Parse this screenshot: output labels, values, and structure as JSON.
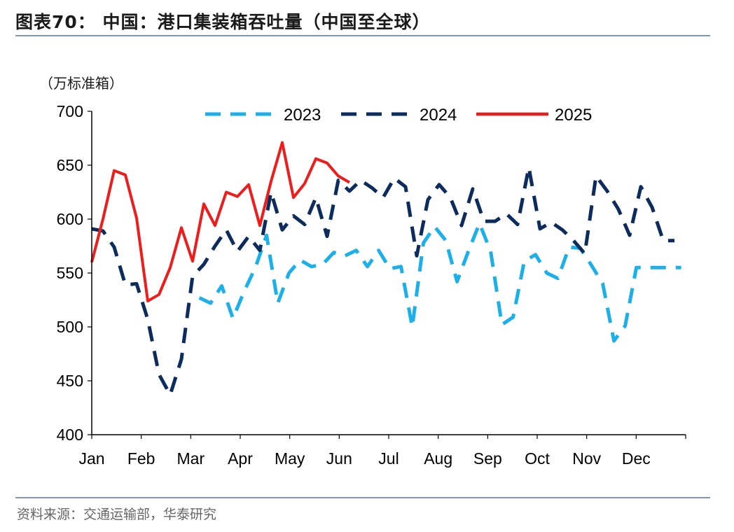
{
  "header": {
    "title": "图表70： 中国：港口集装箱吞吐量（中国至全球）"
  },
  "footer": {
    "source": "资料来源：交通运输部，华泰研究"
  },
  "chart_data": {
    "type": "line",
    "unit_label": "（万标准箱）",
    "ylim": [
      400,
      700
    ],
    "yticks": [
      400,
      450,
      500,
      550,
      600,
      650,
      700
    ],
    "months": [
      "Jan",
      "Feb",
      "Mar",
      "Apr",
      "May",
      "Jun",
      "Jul",
      "Aug",
      "Sep",
      "Oct",
      "Nov",
      "Dec"
    ],
    "grid": false,
    "legend_position": "top",
    "series": [
      {
        "name": "2023",
        "style": "dashed",
        "color": "#1cb0ea",
        "x": [
          9.6,
          10.6,
          11.6,
          12.6,
          13.6,
          14.6,
          15.6,
          16.6,
          17.6,
          18.6,
          19.6,
          20.6,
          21.6,
          22.6,
          23.6,
          24.6,
          25.6,
          26.6,
          27.6,
          28.6,
          29.6,
          30.6,
          31.6,
          32.6,
          33.6,
          34.6,
          35.6,
          36.6,
          37.6,
          38.6,
          39.6,
          40.6,
          41.6,
          42.6,
          43.6,
          44.6,
          45.6,
          46.6,
          47.6,
          48.6,
          49.6,
          50.6,
          51.6,
          52.6
        ],
        "y": [
          527,
          522,
          538,
          508,
          533,
          555,
          585,
          522,
          550,
          562,
          556,
          558,
          569,
          566,
          571,
          556,
          571,
          554,
          556,
          500,
          578,
          593,
          580,
          542,
          570,
          596,
          570,
          502,
          509,
          561,
          567,
          550,
          545,
          574,
          573,
          557,
          540,
          487,
          501,
          555,
          555,
          555,
          555,
          555
        ]
      },
      {
        "name": "2024",
        "style": "dashed",
        "color": "#0c2c5e",
        "x": [
          0,
          1,
          2,
          3,
          4,
          5,
          6,
          7,
          8,
          9,
          10,
          11,
          12,
          13,
          14,
          15,
          16,
          17,
          18,
          19,
          20,
          21,
          22,
          23,
          24,
          25,
          26,
          27,
          28,
          29,
          30,
          31,
          32,
          33,
          34,
          35,
          36,
          37,
          38,
          39,
          40,
          41,
          42,
          43,
          44,
          45,
          46,
          47,
          48,
          49,
          50,
          51,
          52
        ],
        "y": [
          591,
          589,
          574,
          539,
          540,
          507,
          456,
          437,
          470,
          547,
          558,
          575,
          590,
          570,
          584,
          571,
          625,
          590,
          603,
          595,
          620,
          584,
          636,
          626,
          636,
          629,
          620,
          638,
          630,
          566,
          618,
          632,
          620,
          594,
          628,
          598,
          598,
          605,
          595,
          648,
          591,
          597,
          590,
          580,
          568,
          640,
          626,
          609,
          585,
          630,
          611,
          580,
          580
        ]
      },
      {
        "name": "2025",
        "style": "solid",
        "color": "#ef1c1c",
        "x": [
          0,
          1,
          2,
          3,
          4,
          5,
          6,
          7,
          8,
          9,
          10,
          11,
          12,
          13,
          14,
          15,
          16,
          17,
          18,
          19,
          20,
          21,
          22,
          23
        ],
        "y": [
          560,
          600,
          645,
          641,
          601,
          524,
          530,
          555,
          592,
          561,
          614,
          594,
          625,
          621,
          632,
          594,
          635,
          671,
          620,
          633,
          656,
          652,
          640,
          634
        ]
      }
    ]
  }
}
